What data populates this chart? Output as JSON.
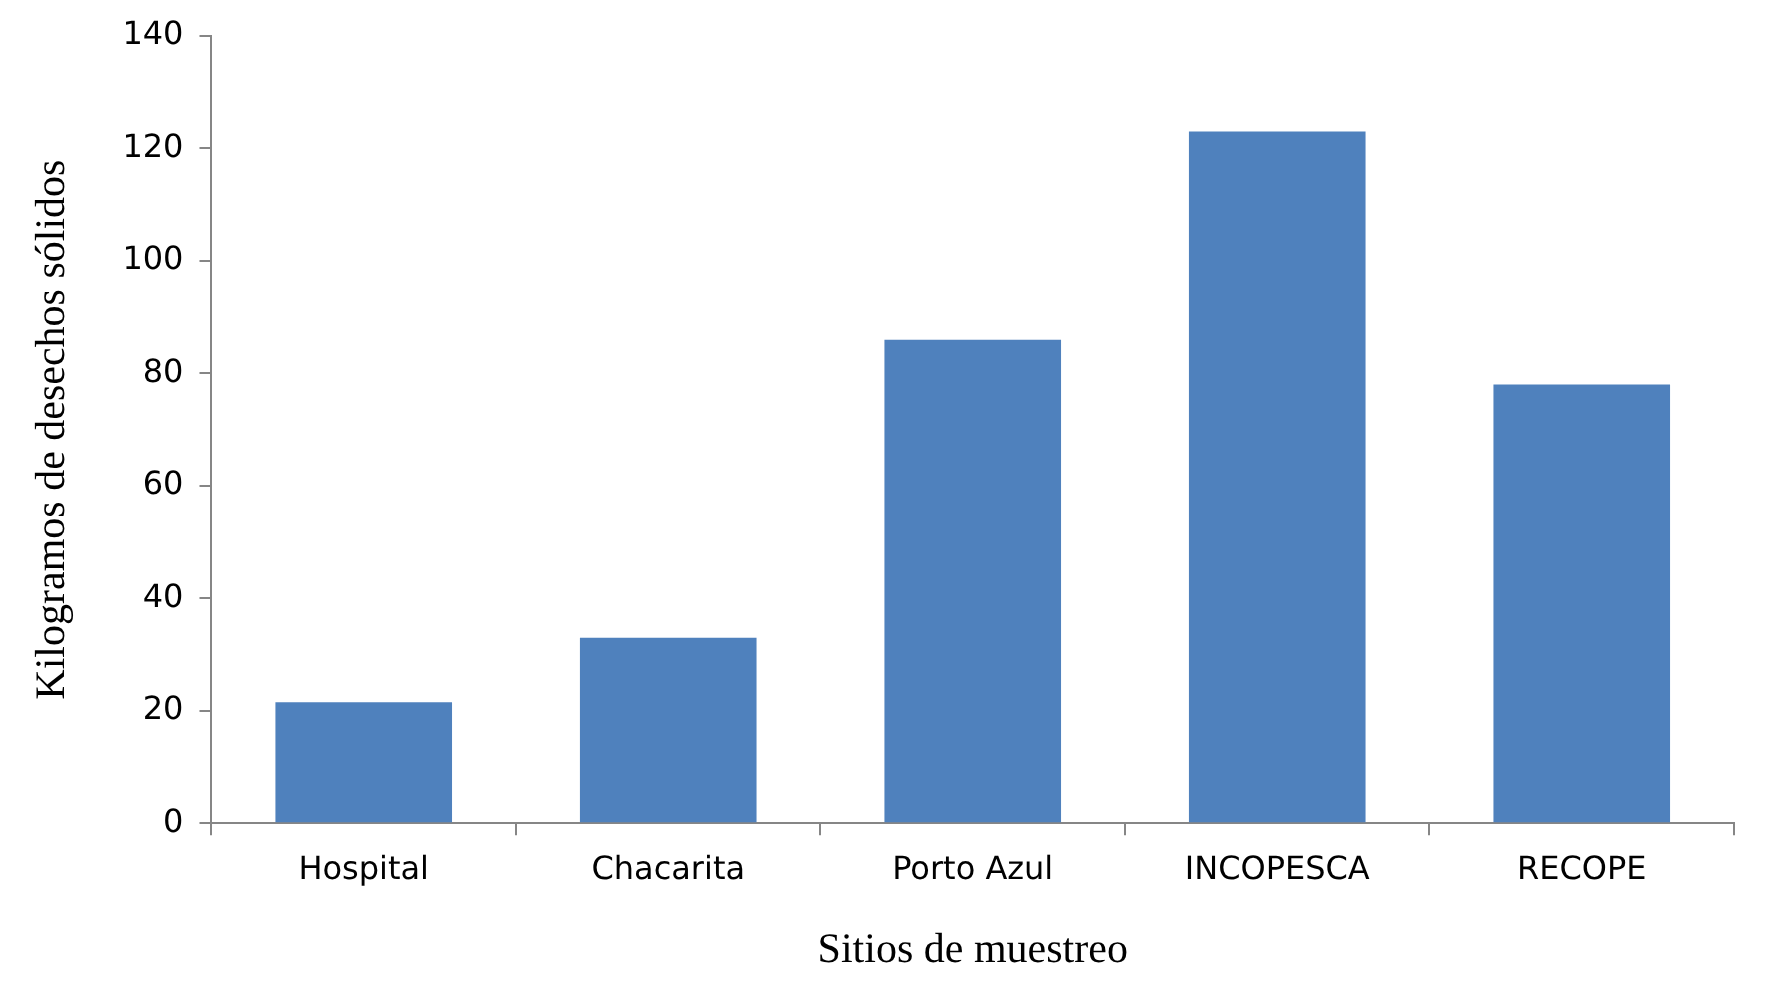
{
  "chart_data": {
    "type": "bar",
    "xlabel": "Sitios de muestreo",
    "ylabel": "Kilogramos de desechos sólidos",
    "categories": [
      "Hospital",
      "Chacarita",
      "Porto Azul",
      "INCOPESCA",
      "RECOPE"
    ],
    "values": [
      21.5,
      33,
      86,
      123,
      78
    ],
    "color": "#4f81bd",
    "ylim": [
      0,
      140
    ],
    "yticks": [
      0,
      20,
      40,
      60,
      80,
      100,
      120,
      140
    ],
    "grid": false,
    "legend": false
  }
}
